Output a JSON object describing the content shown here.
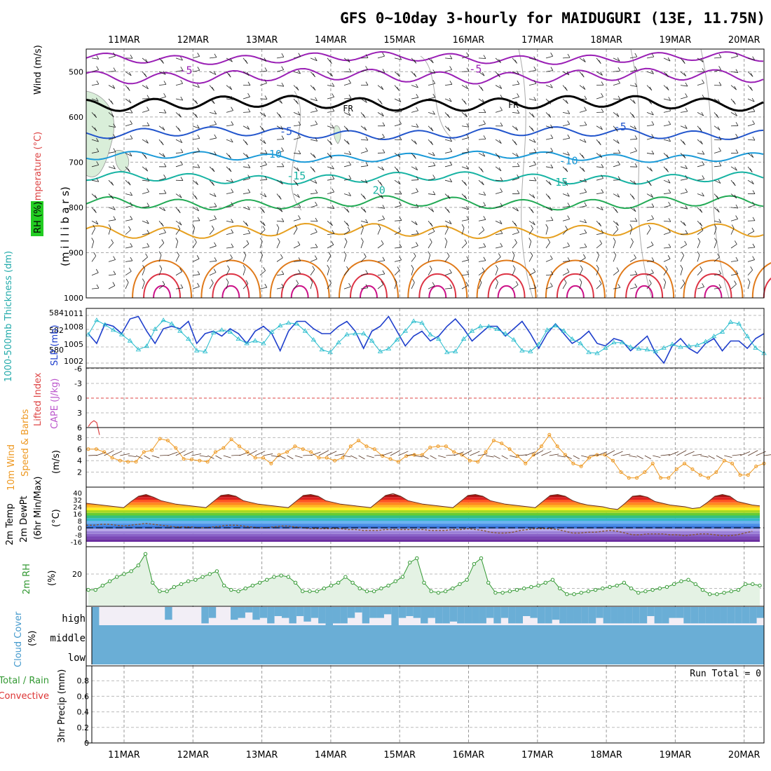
{
  "title": "GFS 0~10day 3-hourly for MAIDUGURI (13E, 11.75N)",
  "dates": [
    "11MAR",
    "12MAR",
    "13MAR",
    "14MAR",
    "15MAR",
    "16MAR",
    "17MAR",
    "18MAR",
    "19MAR",
    "20MAR"
  ],
  "colors": {
    "t_purple": "#9a1fb5",
    "t_black": "#000000",
    "t_blue": "#2255cc",
    "t_lightblue": "#1a9ad8",
    "t_teal": "#17b3a3",
    "t_green": "#22aa55",
    "t_orange1": "#e6a020",
    "t_orange2": "#e07a1a",
    "t_red": "#dd3344",
    "t_magenta": "#cc1188",
    "slp": "#1f3fcc",
    "thickness": "#22bbcc",
    "wind10": "#ee9922",
    "rh2m": "#339933",
    "cloud": "#6aaed6",
    "dewpt": "#885533"
  },
  "chart_data": [
    {
      "type": "line",
      "name": "pressure-level cross-section",
      "ylabel": "(m i l l i b a r s)",
      "side_labels": {
        "wind": "Wind (m/s)",
        "temp": "Temperature (°C)",
        "rh": "RH (%)"
      },
      "yticks": [
        500,
        600,
        700,
        800,
        900,
        1000
      ],
      "ylim": [
        1000,
        450
      ],
      "isotherm_labels": [
        {
          "text": "-5",
          "x": 0.9,
          "p": 505
        },
        {
          "text": "-5",
          "x": 5.1,
          "p": 502
        },
        {
          "text": "FR",
          "x": 3.25,
          "p": 588
        },
        {
          "text": "FR",
          "x": 5.65,
          "p": 580
        },
        {
          "text": "-5",
          "x": 2.35,
          "p": 640
        },
        {
          "text": "-5",
          "x": 7.2,
          "p": 630
        },
        {
          "text": "-10",
          "x": 2.15,
          "p": 690
        },
        {
          "text": "-10",
          "x": 6.45,
          "p": 705
        },
        {
          "text": "-15",
          "x": 2.5,
          "p": 738
        },
        {
          "text": "15",
          "x": 6.35,
          "p": 752
        },
        {
          "text": "20",
          "x": 3.7,
          "p": 770
        }
      ]
    },
    {
      "type": "line",
      "name": "slp-thickness",
      "left_label": "1000-500mb Thickness (dm)",
      "right_label": "SLP (mb)",
      "left_ticks": [
        "584",
        "582",
        "580"
      ],
      "right_ticks": [
        "1011",
        "1008",
        "1005",
        "1002"
      ],
      "slp": [
        1007.5,
        1005.5,
        1009.5,
        1009,
        1007.5,
        1010.5,
        1011,
        1008,
        1005.5,
        1008.5,
        1009,
        1008.5,
        1010,
        1005.5,
        1007.5,
        1008,
        1007,
        1008.5,
        1007.5,
        1005.5,
        1008,
        1009,
        1007.5,
        1004,
        1008,
        1010,
        1010,
        1008.5,
        1007.5,
        1007.5,
        1009,
        1010,
        1008,
        1004.5,
        1008,
        1009,
        1011,
        1008,
        1005,
        1007,
        1008,
        1006,
        1007,
        1009,
        1010.5,
        1008.5,
        1006,
        1007.5,
        1009,
        1009,
        1007,
        1008.5,
        1010,
        1007.5,
        1004.5,
        1007.5,
        1009.5,
        1007.5,
        1005.5,
        1006.5,
        1008,
        1005.5,
        1005,
        1006.5,
        1006,
        1004,
        1005.5,
        1007,
        1003.5,
        1001.5,
        1005,
        1006.5,
        1004.5,
        1003.5,
        1005.5,
        1006.5,
        1004,
        1006,
        1006,
        1004.5,
        1006.5,
        1007.5
      ],
      "thickness": [
        582.2,
        583.8,
        583.3,
        582.7,
        582.2,
        581.5,
        580.5,
        580.9,
        582.8,
        583.8,
        583.4,
        582.6,
        581.7,
        580.4,
        580.3,
        582.4,
        582.7,
        582.5,
        581.7,
        581.2,
        581.5,
        581.2,
        582.5,
        583.2,
        583.5,
        583.4,
        582.6,
        581.6,
        580.5,
        580.2,
        581.3,
        582.2,
        582.3,
        582.3,
        581.5,
        580.3,
        580.6,
        581.6,
        582.6,
        583.7,
        583.5,
        582.2,
        581.7,
        580.2,
        580.3,
        581.7,
        582.6,
        583.1,
        583.1,
        582.8,
        582.3,
        581.6,
        580.4,
        580.3,
        581.1,
        582.7,
        583.2,
        582.6,
        581.7,
        581.2,
        580.2,
        580.1,
        580.7,
        581.3,
        581.3,
        580.8,
        580.6,
        580.5,
        580.3,
        580.7,
        581.1,
        580.8,
        580.9,
        581.0,
        581.4,
        582.0,
        582.5,
        583.6,
        583.4,
        582.0,
        580.7,
        580.1
      ]
    },
    {
      "type": "line",
      "name": "cape-lifted-index",
      "left_label": "Lifted Index",
      "right_label": "CAPE (J/kg)",
      "yticks": [
        "-6",
        "-3",
        "0",
        "3",
        "6"
      ],
      "lifted_index": [
        5.8,
        5.0,
        4.6,
        5.0,
        7.5
      ]
    },
    {
      "type": "line",
      "name": "10m-wind",
      "left_label": "10m Wind",
      "mid_label": "Speed & Barbs",
      "units": "(m/s)",
      "yticks": [
        "2",
        "4",
        "6",
        "8"
      ],
      "speed": [
        6.0,
        6.0,
        5.5,
        4.5,
        4.0,
        3.8,
        3.8,
        5.5,
        5.8,
        7.8,
        7.5,
        6.2,
        4.3,
        4.2,
        4.0,
        3.8,
        5.5,
        6.2,
        7.7,
        6.5,
        5.5,
        4.5,
        4.5,
        3.5,
        5.0,
        5.5,
        6.5,
        6.0,
        5.5,
        4.5,
        4.5,
        4.0,
        4.5,
        6.5,
        7.5,
        6.5,
        6.0,
        4.8,
        4.3,
        3.8,
        4.8,
        5.0,
        5.0,
        6.3,
        6.5,
        6.5,
        5.5,
        5.0,
        4.0,
        3.8,
        5.5,
        7.5,
        7.0,
        6.0,
        4.8,
        3.5,
        5.0,
        6.5,
        8.5,
        6.5,
        5.0,
        3.5,
        3.0,
        4.5,
        5.0,
        5.0,
        4.0,
        2.0,
        1.0,
        1.0,
        2.0,
        3.5,
        1.0,
        1.0,
        2.5,
        3.5,
        2.5,
        1.5,
        1.0,
        2.0,
        4.0,
        3.5,
        1.5,
        1.5,
        3.0,
        3.5
      ]
    },
    {
      "type": "line",
      "name": "2m-temp",
      "left_label": "2m Temp",
      "mid_label": "2m DewPt",
      "sub_label": "(6hr Min/Max)",
      "units": "(°C)",
      "yticks": [
        "40",
        "32",
        "24",
        "16",
        "8",
        "0",
        "-8",
        "-16"
      ],
      "temp": [
        28,
        27,
        26,
        25,
        24,
        23,
        30,
        36,
        38,
        35,
        31,
        29,
        27,
        26,
        25,
        24,
        23,
        30,
        37,
        38,
        36,
        31,
        29,
        27,
        26,
        25,
        24,
        23,
        30,
        37,
        38,
        36,
        31,
        29,
        27,
        26,
        25,
        24,
        23,
        30,
        37,
        39,
        36,
        31,
        29,
        27,
        26,
        25,
        24,
        23,
        30,
        37,
        38,
        36,
        31,
        29,
        27,
        26,
        25,
        24,
        23,
        30,
        37,
        38,
        36,
        31,
        28,
        26,
        25,
        24,
        22,
        21,
        28,
        36,
        37,
        35,
        30,
        28,
        26,
        25,
        24,
        22,
        23,
        29,
        36,
        38,
        36,
        30,
        28,
        26,
        25
      ],
      "dewpt": [
        3,
        3,
        4,
        4,
        3,
        2,
        3,
        4,
        5,
        4,
        3,
        2,
        1,
        1,
        1,
        0,
        0,
        1,
        2,
        3,
        3,
        2,
        1,
        0,
        0,
        1,
        2,
        2,
        1,
        0,
        -1,
        -1,
        -1,
        -1,
        -1,
        -2,
        -2,
        -3,
        -3,
        -3,
        -2,
        -2,
        -2,
        -2,
        -2,
        -2,
        -3,
        -3,
        -3,
        -2,
        -2,
        -1,
        -2,
        -3,
        -5,
        -6,
        -6,
        -5,
        -3,
        -2,
        -1,
        -1,
        -1,
        -2,
        -4,
        -6,
        -6,
        -5,
        -5,
        -4,
        -3,
        -4,
        -6,
        -8,
        -8,
        -7,
        -7,
        -7,
        -8,
        -8,
        -9,
        -8,
        -7,
        -7,
        -8,
        -9,
        -9,
        -8,
        -6,
        -4
      ]
    },
    {
      "type": "area",
      "name": "2m-rh",
      "left_label": "2m RH",
      "units": "(%)",
      "yticks": [
        "20"
      ],
      "rh": [
        9,
        9,
        12,
        15,
        18,
        20,
        22,
        26,
        34,
        14,
        8,
        8,
        11,
        13,
        15,
        16,
        18,
        20,
        22,
        12,
        9,
        8,
        10,
        12,
        14,
        16,
        18,
        19,
        18,
        14,
        8,
        8,
        8,
        10,
        12,
        14,
        18,
        14,
        10,
        8,
        8,
        10,
        12,
        15,
        18,
        28,
        31,
        14,
        8,
        7,
        8,
        10,
        13,
        16,
        27,
        31,
        14,
        7,
        7,
        8,
        9,
        10,
        11,
        12,
        14,
        16,
        10,
        6,
        6,
        7,
        8,
        9,
        10,
        11,
        12,
        14,
        10,
        7,
        8,
        9,
        10,
        11,
        13,
        15,
        16,
        13,
        9,
        6,
        6,
        7,
        8,
        9,
        13,
        13,
        12
      ]
    },
    {
      "type": "bar",
      "name": "cloud-cover",
      "left_label": "Cloud Cover",
      "units": "(%)",
      "level_labels": [
        "high",
        "middle",
        "low"
      ],
      "high": [
        80,
        100,
        100,
        100,
        100,
        100,
        100,
        100,
        100,
        100,
        90,
        100,
        100,
        100,
        100,
        100,
        100,
        100,
        100,
        100,
        100,
        100,
        100,
        100,
        100,
        100,
        100,
        100,
        100,
        100,
        100,
        100,
        100,
        100,
        100,
        100,
        100,
        100,
        100,
        100,
        100,
        100,
        100,
        100,
        100,
        100,
        100,
        100,
        100,
        100,
        100,
        100,
        100,
        100,
        100,
        100,
        100,
        100,
        100,
        100,
        100,
        100,
        100,
        100,
        100,
        100,
        100,
        100,
        100,
        100,
        100,
        100,
        100,
        100,
        100,
        100,
        100,
        100,
        100,
        100,
        100,
        100,
        100,
        100,
        100,
        100,
        100,
        100,
        100,
        100,
        100,
        100
      ],
      "high_top": [
        0.55,
        0.0,
        0.0,
        0.0,
        0.0,
        0.0,
        0.0,
        0.0,
        0.0,
        0.0,
        0.3,
        0.0,
        0.0,
        0.0,
        0.0,
        0.0,
        0.0,
        0.0,
        0.0,
        0.0,
        0.0,
        0.0,
        0.0,
        0.0,
        0.0,
        0.0,
        0.0,
        0.0,
        0.0,
        0.0,
        0.0,
        0.0,
        0.0,
        0.0,
        0.0,
        0.0,
        0.0,
        0.0,
        0.0,
        0.0,
        0.0,
        0.0,
        0.0,
        0.0,
        0.0,
        0.0,
        0.0,
        0.0,
        0.0,
        0.0,
        0.0,
        0.0,
        0.0,
        0.0,
        0.0,
        0.0,
        0.0,
        0.0,
        0.0,
        0.0,
        0.0,
        0.0,
        0.0,
        0.0,
        0.0,
        0.0,
        0.0,
        0.0,
        0.0,
        0.0,
        0.0,
        0.0,
        0.0,
        0.0,
        0.0,
        0.0,
        0.0,
        0.0,
        0.0,
        0.0,
        0.0,
        0.0,
        0.0,
        0.0,
        0.0,
        0.0,
        0.0,
        0.0,
        0.0,
        0.0,
        0.0,
        0.0
      ],
      "high_fill": [
        1.0,
        0.0,
        0.0,
        0.0,
        0.0,
        0.0,
        0.0,
        0.0,
        0.0,
        0.0,
        0.7,
        0.0,
        0.0,
        0.0,
        0.0,
        0.9,
        0.6,
        0.0,
        0.0,
        0.7,
        0.6,
        0.3,
        0.7,
        0.6,
        0.9,
        0.5,
        0.6,
        0.9,
        0.5,
        0.8,
        0.6,
        0.9,
        1.0,
        0.9,
        0.9,
        0.6,
        0.3,
        0.9,
        0.6,
        0.6,
        0.4,
        1.0,
        0.6,
        0.5,
        0.6,
        0.9,
        0.6,
        0.9,
        0.9,
        0.8,
        0.9,
        0.9,
        0.9,
        0.9,
        0.6,
        0.9,
        0.6,
        0.9,
        0.9,
        0.5,
        0.6,
        0.9,
        0.9,
        0.7,
        0.9,
        0.9,
        0.9,
        0.9,
        0.9,
        0.6,
        0.9,
        0.9,
        0.9,
        0.9,
        0.9,
        0.9,
        0.5,
        0.9,
        0.9,
        0.6,
        0.6,
        0.9,
        0.9,
        0.9,
        0.9,
        0.9,
        0.9,
        0.9,
        0.9,
        0.9,
        0.9,
        0.6
      ],
      "run_total": "Run Total = 0"
    },
    {
      "type": "line",
      "name": "3hr-precip",
      "left_label": "3hr Precip (mm)",
      "side_labels": [
        "Total / Rain",
        "Convective"
      ],
      "yticks": [
        "0",
        "0.2",
        "0.4",
        "0.6",
        "0.8"
      ],
      "values": []
    }
  ]
}
